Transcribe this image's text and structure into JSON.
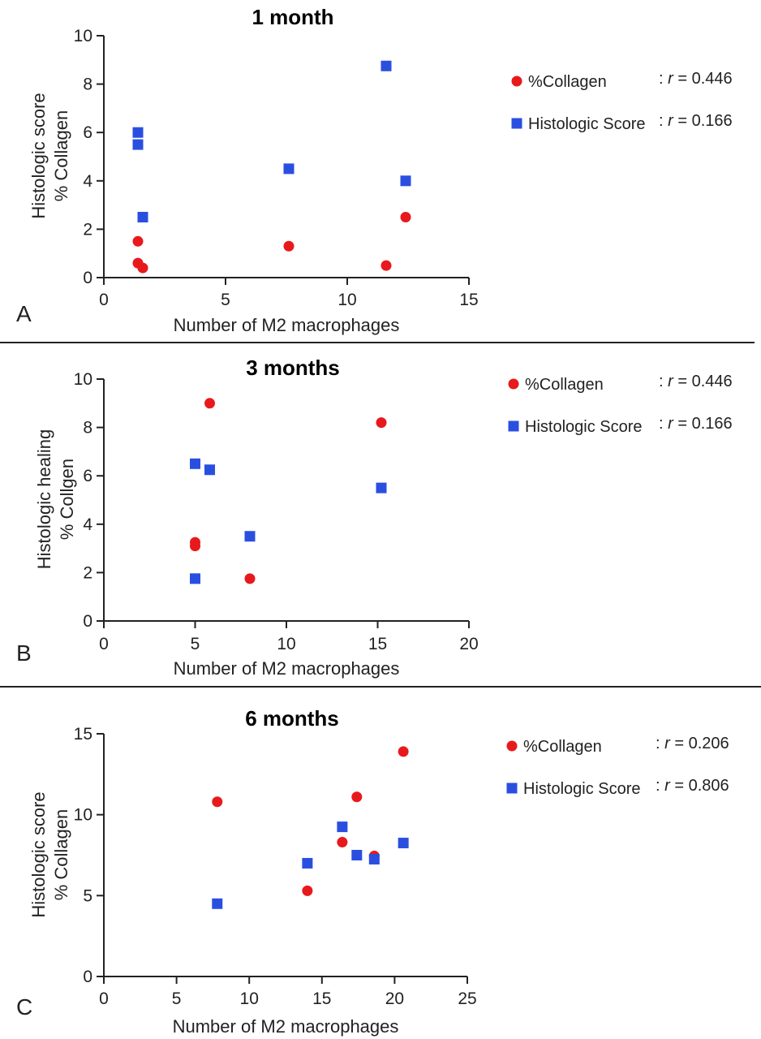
{
  "chart_data": [
    {
      "type": "scatter",
      "panel_label": "A",
      "title": "1 month",
      "xlabel": "Number of M2 macrophages",
      "ylabel": [
        "Histologic score",
        "% Collagen"
      ],
      "xlim": [
        0,
        15
      ],
      "ylim": [
        0,
        10
      ],
      "xticks": [
        "0",
        "5",
        "10",
        "15"
      ],
      "yticks": [
        "0",
        "2",
        "4",
        "6",
        "8",
        "10"
      ],
      "legend_position": "right",
      "series": [
        {
          "name": "%Collagen",
          "r_label": "r = 0.446",
          "marker": "circle",
          "color": "#e8191c",
          "points": [
            [
              1.4,
              1.5
            ],
            [
              1.4,
              0.6
            ],
            [
              1.6,
              0.4
            ],
            [
              7.6,
              1.3
            ],
            [
              11.6,
              0.5
            ],
            [
              12.4,
              2.5
            ]
          ]
        },
        {
          "name": "Histologic Score",
          "r_label": "r = 0.166",
          "marker": "square",
          "color": "#2a4fe0",
          "points": [
            [
              1.4,
              6.0
            ],
            [
              1.4,
              5.5
            ],
            [
              1.6,
              2.5
            ],
            [
              7.6,
              4.5
            ],
            [
              11.6,
              8.75
            ],
            [
              12.4,
              4.0
            ]
          ]
        }
      ]
    },
    {
      "type": "scatter",
      "panel_label": "B",
      "title": "3 months",
      "xlabel": "Number of M2 macrophages",
      "ylabel": [
        "Histologic healing",
        "% Collgen"
      ],
      "xlim": [
        0,
        20
      ],
      "ylim": [
        0,
        10
      ],
      "xticks": [
        "0",
        "5",
        "10",
        "15",
        "20"
      ],
      "yticks": [
        "0",
        "2",
        "4",
        "6",
        "8",
        "10"
      ],
      "legend_position": "right",
      "series": [
        {
          "name": "%Collagen",
          "r_label": "r = 0.446",
          "marker": "circle",
          "color": "#e8191c",
          "points": [
            [
              5.8,
              9.0
            ],
            [
              15.2,
              8.2
            ],
            [
              5.0,
              3.25
            ],
            [
              5.0,
              3.1
            ],
            [
              8.0,
              1.75
            ]
          ]
        },
        {
          "name": "Histologic Score",
          "r_label": "r = 0.166",
          "marker": "square",
          "color": "#2a4fe0",
          "points": [
            [
              5.0,
              6.5
            ],
            [
              5.8,
              6.25
            ],
            [
              15.2,
              5.5
            ],
            [
              8.0,
              3.5
            ],
            [
              5.0,
              1.75
            ]
          ]
        }
      ]
    },
    {
      "type": "scatter",
      "panel_label": "C",
      "title": "6 months",
      "xlabel": "Number of M2 macrophages",
      "ylabel": [
        "Histologic score",
        "% Collagen"
      ],
      "xlim": [
        0,
        25
      ],
      "ylim": [
        0,
        15
      ],
      "xticks": [
        "0",
        "5",
        "10",
        "15",
        "20",
        "25"
      ],
      "yticks": [
        "0",
        "5",
        "10",
        "15"
      ],
      "legend_position": "right",
      "series": [
        {
          "name": "%Collagen",
          "r_label": "r = 0.206",
          "marker": "circle",
          "color": "#e8191c",
          "points": [
            [
              7.8,
              10.8
            ],
            [
              14.0,
              5.3
            ],
            [
              16.4,
              8.3
            ],
            [
              17.4,
              11.1
            ],
            [
              18.6,
              7.45
            ],
            [
              20.6,
              13.9
            ]
          ]
        },
        {
          "name": "Histologic Score",
          "r_label": "r = 0.806",
          "marker": "square",
          "color": "#2a4fe0",
          "points": [
            [
              7.8,
              4.5
            ],
            [
              14.0,
              7.0
            ],
            [
              16.4,
              9.25
            ],
            [
              17.4,
              7.5
            ],
            [
              18.6,
              7.25
            ],
            [
              20.6,
              8.25
            ]
          ]
        }
      ]
    }
  ]
}
